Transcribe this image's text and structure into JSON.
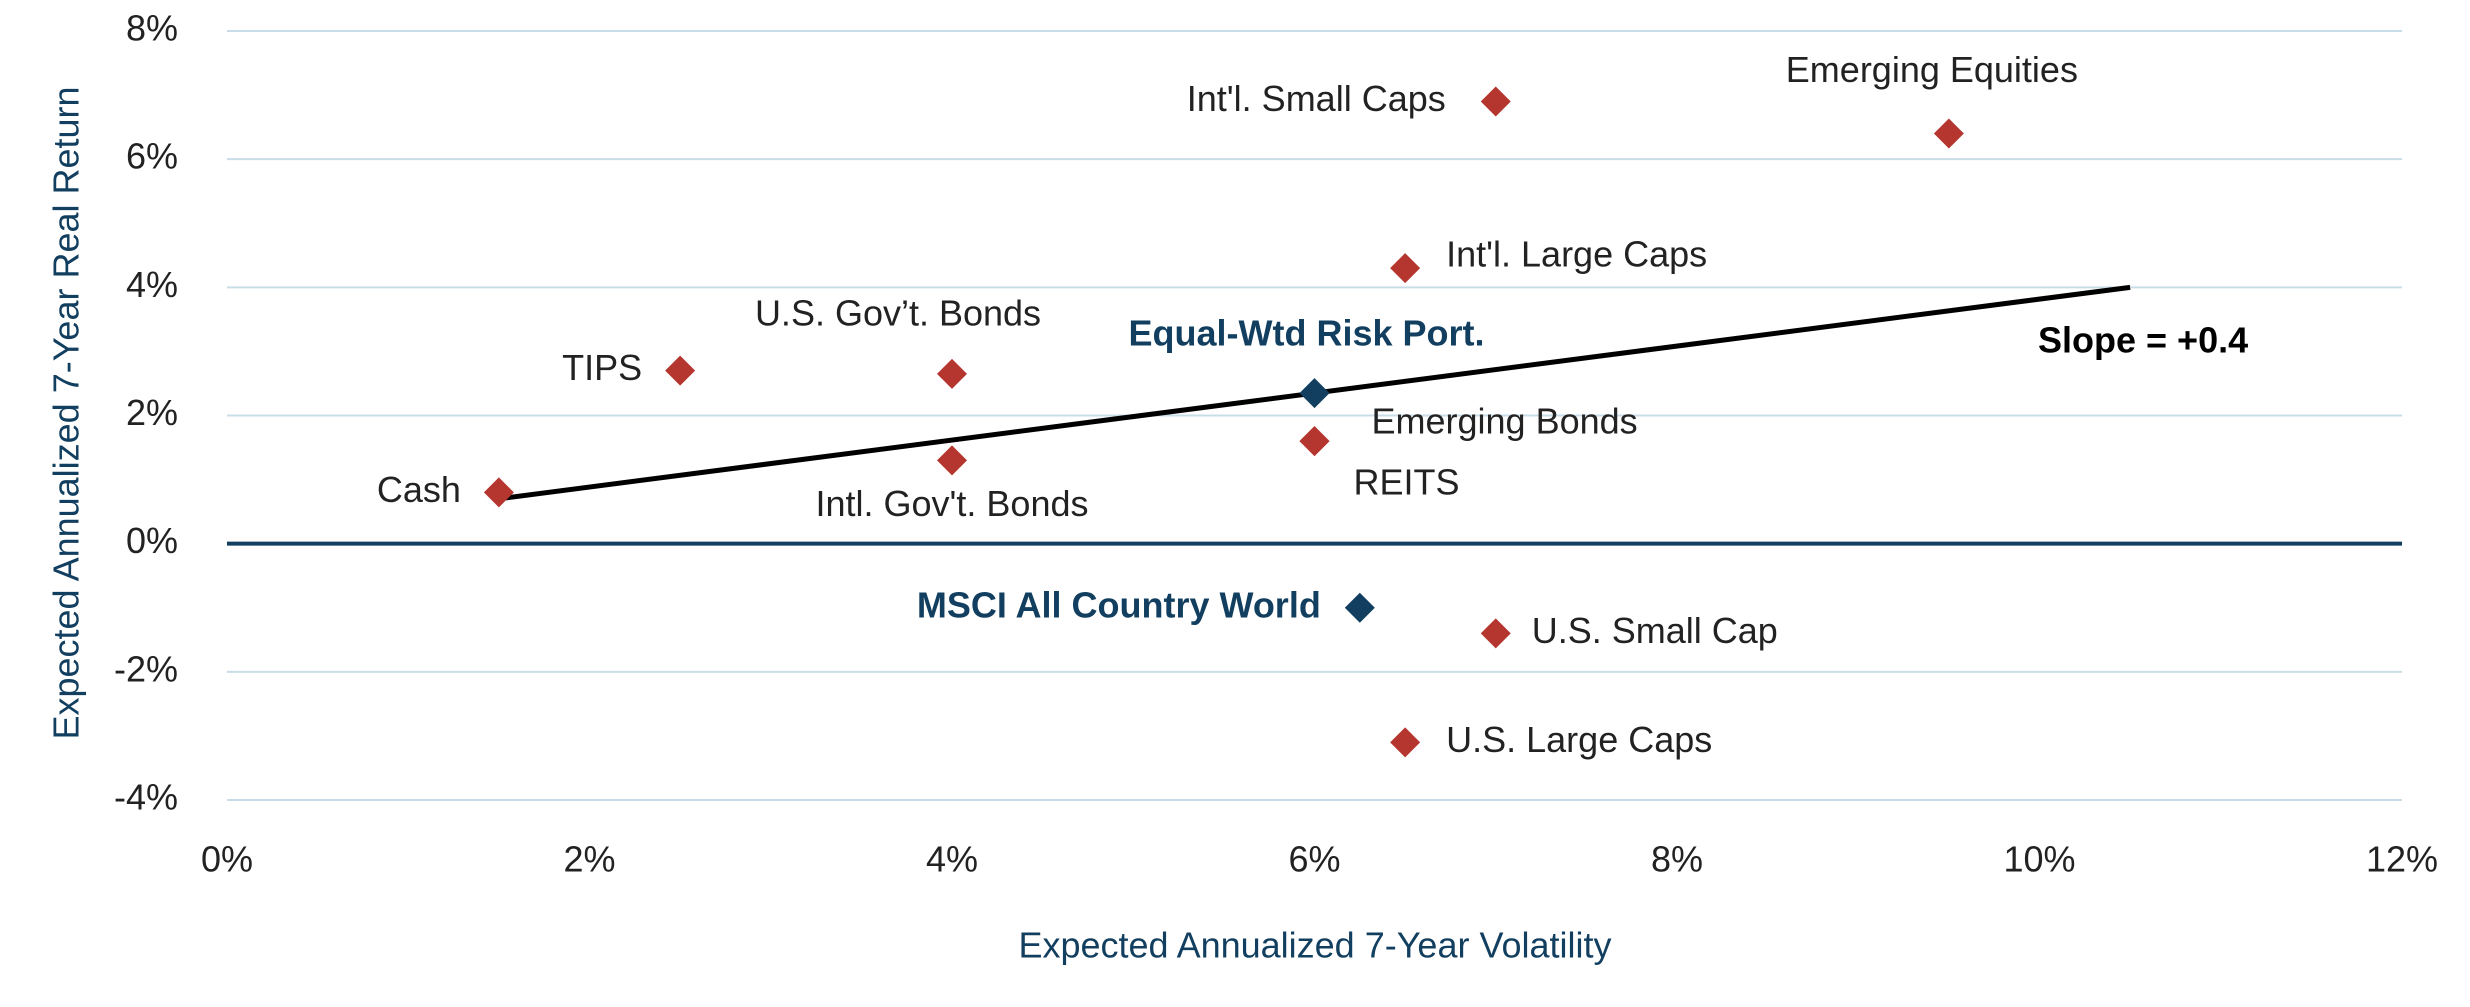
{
  "chart_data": {
    "type": "scatter",
    "x_label": "Expected Annualized 7-Year Volatility",
    "y_label": "Expected Annualized 7-Year Real Return",
    "xlim": [
      0,
      12
    ],
    "xticks": [
      {
        "value": 0,
        "label": "0%"
      },
      {
        "value": 2,
        "label": "2%"
      },
      {
        "value": 4,
        "label": "4%"
      },
      {
        "value": 6,
        "label": "6%"
      },
      {
        "value": 8,
        "label": "8%"
      },
      {
        "value": 10,
        "label": "10%"
      },
      {
        "value": 12,
        "label": "12%"
      }
    ],
    "ylim": [
      -4,
      8
    ],
    "yticks": [
      {
        "value": -4,
        "label": "-4%"
      },
      {
        "value": -2,
        "label": "-2%"
      },
      {
        "value": 0,
        "label": "0%"
      },
      {
        "value": 2,
        "label": "2%"
      },
      {
        "value": 4,
        "label": "4%"
      },
      {
        "value": 6,
        "label": "6%"
      },
      {
        "value": 8,
        "label": "8%"
      }
    ],
    "grid": true,
    "points": [
      {
        "label": "Cash",
        "x": 1.5,
        "y": 0.8,
        "color": "#b5362f"
      },
      {
        "label": "TIPS",
        "x": 2.5,
        "y": 2.7,
        "color": "#b5362f"
      },
      {
        "label": "U.S. Gov’t. Bonds",
        "x": 4.0,
        "y": 2.65,
        "color": "#b5362f"
      },
      {
        "label": "Intl. Gov't. Bonds",
        "x": 4.0,
        "y": 1.3,
        "color": "#b5362f"
      },
      {
        "label": "Equal-Wtd Risk Port.",
        "x": 6.0,
        "y": 2.35,
        "color": "#123f5f"
      },
      {
        "label": "Emerging Bonds",
        "x": 6.0,
        "y": 1.6,
        "color": "#b5362f"
      },
      {
        "label": "REITS",
        "x": 6.0,
        "y": 1.6,
        "color": "#b5362f"
      },
      {
        "label": "Int'l. Small Caps",
        "x": 7.0,
        "y": 6.9,
        "color": "#b5362f"
      },
      {
        "label": "Emerging Equities",
        "x": 9.5,
        "y": 6.4,
        "color": "#b5362f"
      },
      {
        "label": "Int'l. Large Caps",
        "x": 6.5,
        "y": 4.3,
        "color": "#b5362f"
      },
      {
        "label": "MSCI All Country World",
        "x": 6.25,
        "y": -1.0,
        "color": "#123f5f"
      },
      {
        "label": "U.S. Small Cap",
        "x": 7.0,
        "y": -1.4,
        "color": "#b5362f"
      },
      {
        "label": "U.S. Large Caps",
        "x": 6.5,
        "y": -3.1,
        "color": "#b5362f"
      }
    ],
    "trendline": {
      "x": [
        1.5,
        10.5
      ],
      "y": [
        0.7,
        4.0
      ],
      "label": "Slope = +0.4",
      "color": "#000000"
    }
  }
}
